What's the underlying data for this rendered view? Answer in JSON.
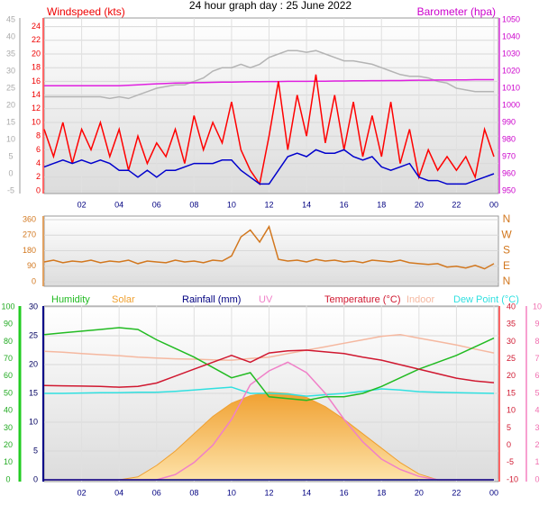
{
  "chart_data": [
    {
      "type": "line",
      "title": "24 hour graph day : 25 June 2022",
      "ylabel": "Windspeed (kts)",
      "y2label": "Barometer (hpa)",
      "x": [
        0,
        0.5,
        1,
        1.5,
        2,
        2.5,
        3,
        3.5,
        4,
        4.5,
        5,
        5.5,
        6,
        6.5,
        7,
        7.5,
        8,
        8.5,
        9,
        9.5,
        10,
        10.5,
        11,
        11.5,
        12,
        12.5,
        13,
        13.5,
        14,
        14.5,
        15,
        15.5,
        16,
        16.5,
        17,
        17.5,
        18,
        18.5,
        19,
        19.5,
        20,
        20.5,
        21,
        21.5,
        22,
        22.5,
        23,
        23.5,
        24
      ],
      "xlim": [
        0,
        24
      ],
      "xticks": [
        {
          "value": 2,
          "label": "02"
        },
        {
          "value": 4,
          "label": "04"
        },
        {
          "value": 6,
          "label": "06"
        },
        {
          "value": 8,
          "label": "08"
        },
        10,
        12,
        14,
        16,
        18,
        20,
        22,
        {
          "value": 24,
          "label": "00"
        }
      ],
      "ylim": [
        0,
        25
      ],
      "yticks": [
        0,
        2,
        4,
        6,
        8,
        10,
        12,
        14,
        16,
        18,
        20,
        22,
        24
      ],
      "y2lim": [
        950,
        1050
      ],
      "y2ticks": [
        950,
        960,
        970,
        980,
        990,
        1000,
        1010,
        1020,
        1030,
        1040,
        1050
      ],
      "y3lim": [
        -5,
        45
      ],
      "y3ticks": [
        -5,
        0,
        5,
        10,
        15,
        20,
        25,
        30,
        35,
        40,
        45
      ],
      "grid": true,
      "series": [
        {
          "color": "#b4b4b4",
          "axis": "y3",
          "values": [
            22.5,
            22.5,
            22.5,
            22.5,
            22.5,
            22.5,
            22.5,
            22,
            22.5,
            22,
            23,
            24,
            25,
            25.5,
            26,
            26,
            27,
            28,
            30,
            31,
            31,
            32,
            31,
            32,
            34,
            35,
            36,
            36,
            35.5,
            36,
            35,
            34,
            33,
            33,
            32.5,
            32,
            31,
            30,
            29,
            28.5,
            28.5,
            28,
            27,
            26.5,
            25,
            24.5,
            24,
            24,
            24
          ]
        },
        {
          "color": "#e020e0",
          "axis": "y2",
          "values": [
            1011.4,
            1011.4,
            1011.4,
            1011.4,
            1011.4,
            1011.4,
            1011.4,
            1011.4,
            1011.5,
            1011.7,
            1012,
            1012.3,
            1012.6,
            1012.8,
            1013,
            1013.1,
            1013.2,
            1013.3,
            1013.4,
            1013.5,
            1013.6,
            1013.7,
            1013.8,
            1013.8,
            1013.9,
            1013.9,
            1014,
            1014,
            1014,
            1014.1,
            1014.1,
            1014.2,
            1014.2,
            1014.3,
            1014.3,
            1014.4,
            1014.4,
            1014.5,
            1014.5,
            1014.6,
            1014.7,
            1014.7,
            1014.8,
            1014.8,
            1014.9,
            1014.9,
            1015,
            1015,
            1015
          ]
        },
        {
          "color": "#ff0000",
          "axis": "y",
          "values": [
            9,
            5,
            10,
            4,
            9,
            6,
            10,
            5,
            9,
            3,
            8,
            4,
            7,
            5,
            9,
            4,
            11,
            6,
            10,
            7,
            13,
            6,
            3,
            1,
            8,
            16,
            6,
            14,
            8,
            17,
            7,
            14,
            6,
            13,
            5,
            11,
            5,
            13,
            4,
            9,
            2,
            6,
            3,
            5,
            3,
            5,
            2,
            9,
            5
          ]
        },
        {
          "color": "#0000cc",
          "axis": "y",
          "values": [
            3.5,
            4,
            4.5,
            4,
            4.5,
            4,
            4.5,
            4,
            3,
            3,
            2,
            3,
            2,
            3,
            3,
            3.5,
            4,
            4,
            4,
            4.5,
            4.5,
            3,
            2,
            1,
            1,
            3,
            5,
            5.5,
            5,
            6,
            5.5,
            5.5,
            6,
            5,
            4.5,
            5,
            3.5,
            3,
            3.5,
            4,
            2,
            1.5,
            1.5,
            1,
            1,
            1,
            1.5,
            2,
            2.5
          ]
        }
      ]
    },
    {
      "type": "line",
      "x": [
        0,
        0.5,
        1,
        1.5,
        2,
        2.5,
        3,
        3.5,
        4,
        4.5,
        5,
        5.5,
        6,
        6.5,
        7,
        7.5,
        8,
        8.5,
        9,
        9.5,
        10,
        10.5,
        11,
        11.5,
        12,
        12.5,
        13,
        13.5,
        14,
        14.5,
        15,
        15.5,
        16,
        16.5,
        17,
        17.5,
        18,
        18.5,
        19,
        19.5,
        20,
        20.5,
        21,
        21.5,
        22,
        22.5,
        23,
        23.5,
        24
      ],
      "xlim": [
        0,
        24
      ],
      "ylim": [
        0,
        360
      ],
      "yticks": [
        0,
        90,
        180,
        270,
        360
      ],
      "y2lim": [
        0,
        360
      ],
      "y2ticks": [
        {
          "value": 0,
          "label": "N"
        },
        {
          "value": 90,
          "label": "E"
        },
        {
          "value": 180,
          "label": "S"
        },
        {
          "value": 270,
          "label": "W"
        },
        {
          "value": 360,
          "label": "N"
        }
      ],
      "grid": true,
      "series": [
        {
          "color": "#d2771e",
          "axis": "y",
          "values": [
            115,
            125,
            110,
            120,
            115,
            125,
            110,
            120,
            115,
            125,
            105,
            120,
            115,
            110,
            125,
            115,
            120,
            110,
            125,
            120,
            150,
            260,
            300,
            230,
            320,
            130,
            120,
            125,
            115,
            130,
            120,
            125,
            115,
            120,
            110,
            125,
            120,
            115,
            125,
            110,
            105,
            100,
            105,
            85,
            90,
            80,
            95,
            75,
            105
          ]
        }
      ]
    },
    {
      "type": "line",
      "x": [
        0,
        1,
        2,
        3,
        4,
        5,
        6,
        7,
        8,
        9,
        10,
        11,
        12,
        13,
        14,
        15,
        16,
        17,
        18,
        19,
        20,
        21,
        22,
        23,
        24
      ],
      "xlim": [
        0,
        24
      ],
      "xticks": [
        {
          "value": 2,
          "label": "02"
        },
        {
          "value": 4,
          "label": "04"
        },
        {
          "value": 6,
          "label": "06"
        },
        {
          "value": 8,
          "label": "08"
        },
        10,
        12,
        14,
        16,
        18,
        20,
        22,
        {
          "value": 24,
          "label": "00"
        }
      ],
      "ylim": [
        0,
        30
      ],
      "yticks": [
        0,
        5,
        10,
        15,
        20,
        25,
        30
      ],
      "y2lim": [
        -10,
        40
      ],
      "y2ticks": [
        -10,
        -5,
        0,
        5,
        10,
        15,
        20,
        25,
        30,
        35,
        40
      ],
      "y3lim": [
        0,
        100
      ],
      "y3ticks": [
        0,
        10,
        20,
        30,
        40,
        50,
        60,
        70,
        80,
        90,
        100
      ],
      "y4lim": [
        0,
        10
      ],
      "y4ticks": [
        0,
        1,
        2,
        3,
        4,
        5,
        6,
        7,
        8,
        9,
        10
      ],
      "grid": true,
      "series": [
        {
          "name": "Solar",
          "color": "#f0a030",
          "axis": "y",
          "area": true,
          "values": [
            0,
            0,
            0,
            0,
            0,
            0.5,
            2.5,
            5,
            8,
            11,
            13.3,
            14.6,
            15.2,
            15,
            14.3,
            12.7,
            10.5,
            8,
            5.5,
            3,
            1,
            0,
            0,
            0,
            0
          ]
        },
        {
          "name": "Indoor",
          "color": "#f5b8a0",
          "axis": "y2",
          "values": [
            27.2,
            26.9,
            26.5,
            26.2,
            25.9,
            25.5,
            25.2,
            25,
            24.9,
            24.7,
            24.6,
            25.1,
            25.5,
            26.5,
            27.5,
            28.5,
            29.5,
            30.5,
            31.5,
            32,
            31,
            30,
            29,
            27.8,
            26.7
          ]
        },
        {
          "name": "Dew Point (°C)",
          "color": "#30e0e0",
          "axis": "y2",
          "values": [
            15,
            15,
            15.1,
            15.2,
            15.2,
            15.3,
            15.3,
            15.6,
            16,
            16.4,
            16.8,
            15,
            15,
            14.8,
            14.2,
            14.6,
            15,
            15.6,
            16.3,
            16,
            15.5,
            15.3,
            15.2,
            15.1,
            15
          ]
        },
        {
          "name": "UV",
          "color": "#f080c8",
          "axis": "y4",
          "values": [
            0,
            0,
            0,
            0,
            0,
            0,
            0,
            0.3,
            1,
            2,
            3.5,
            5.5,
            6.3,
            6.8,
            6.2,
            5,
            3.5,
            2.2,
            1.2,
            0.6,
            0.2,
            0,
            0,
            0,
            0
          ]
        },
        {
          "name": "Humidity",
          "color": "#22bb22",
          "axis": "y3",
          "values": [
            84,
            85,
            86,
            87,
            88,
            87,
            81,
            76,
            71,
            65,
            59,
            62,
            48,
            47,
            46,
            48,
            48,
            50,
            54,
            59,
            64,
            68,
            72,
            77,
            82
          ]
        },
        {
          "name": "Temperature (°C)",
          "color": "#d01830",
          "axis": "y2",
          "values": [
            17.3,
            17.2,
            17.1,
            17,
            16.8,
            17,
            18,
            20,
            22,
            24,
            26,
            24,
            26.7,
            27.3,
            27.5,
            27,
            26.5,
            25.5,
            24.6,
            23.3,
            22,
            20.7,
            19.4,
            18.6,
            18.1
          ]
        },
        {
          "name": "Rainfall (mm)",
          "color": "#000080",
          "axis": "y",
          "values": [
            0,
            0,
            0,
            0,
            0,
            0,
            0,
            0,
            0,
            0,
            0,
            0,
            0,
            0,
            0,
            0,
            0,
            0,
            0,
            0,
            0,
            0,
            0,
            0,
            0
          ]
        }
      ]
    }
  ]
}
